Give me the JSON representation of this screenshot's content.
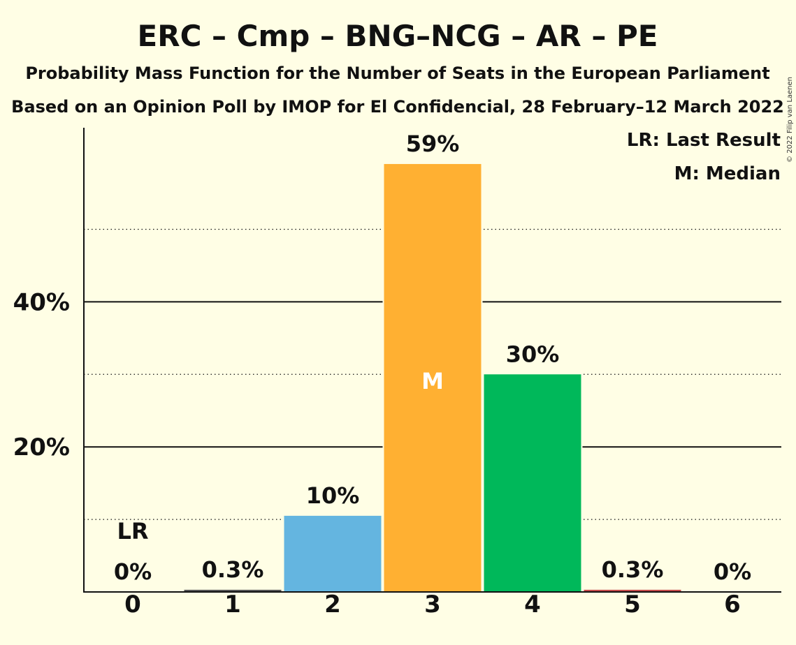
{
  "header": {
    "title": "ERC – Cmp – BNG–NCG – AR – PE",
    "subtitle1": "Probability Mass Function for the Number of Seats in the European Parliament",
    "subtitle2": "Based on an Opinion Poll by IMOP for El Confidencial, 28 February–12 March 2022",
    "copyright": "© 2022 Filip van Laenen"
  },
  "legend": {
    "last_result": "LR: Last Result",
    "median": "M: Median"
  },
  "chart_data": {
    "type": "bar",
    "categories": [
      "0",
      "1",
      "2",
      "3",
      "4",
      "5",
      "6"
    ],
    "values": [
      0,
      0.3,
      10.5,
      59,
      30,
      0.3,
      0
    ],
    "data_labels": [
      "0%",
      "0.3%",
      "10%",
      "59%",
      "30%",
      "0.3%",
      "0%"
    ],
    "bar_colors": [
      "#E8D34A",
      "#555555",
      "#64B5E0",
      "#FFB032",
      "#00B85A",
      "#C44A4A",
      "#E8D34A"
    ],
    "yticks": [
      20,
      40
    ],
    "ytick_labels": [
      "20%",
      "40%"
    ],
    "minor_gridlines": [
      10,
      30,
      50
    ],
    "ylim": [
      0,
      64
    ],
    "last_result_index": 0,
    "last_result_marker": "LR",
    "median_index": 3,
    "median_marker": "M",
    "legend_position": "top-right"
  }
}
